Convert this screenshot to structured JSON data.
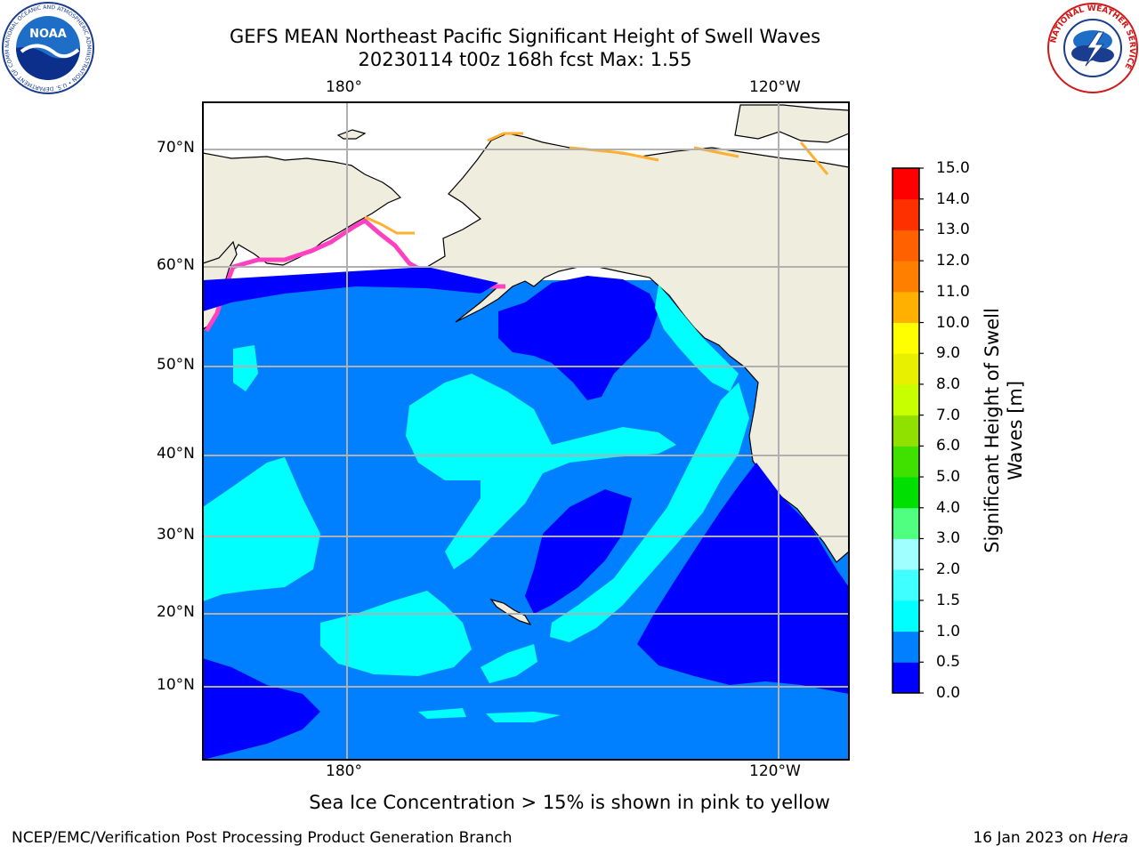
{
  "title": {
    "line1": "GEFS MEAN Northeast Pacific Significant Height of Swell Waves",
    "line2": "20230114 t00z 168h fcst   Max: 1.55"
  },
  "map": {
    "top_lon_labels": [
      "180°",
      "120°W"
    ],
    "bottom_lon_labels": [
      "180°",
      "120°W"
    ],
    "lat_labels": [
      "70°N",
      "60°N",
      "50°N",
      "40°N",
      "30°N",
      "20°N",
      "10°N"
    ],
    "colors": {
      "land": "#efedde",
      "ocean_light": "#0080ff",
      "ocean_dark": "#0000ff",
      "swell_cyan": "#00ffff",
      "grid": "#b0b0b0",
      "coast": "#000000"
    }
  },
  "colorbar": {
    "label": "Significant Height of Swell Waves [m]",
    "label_line1": "Significant Height of Swell",
    "label_line2": "Waves [m]",
    "ticks": [
      "15.0",
      "14.0",
      "13.0",
      "12.0",
      "11.0",
      "10.0",
      "9.0",
      "8.0",
      "7.0",
      "6.0",
      "5.0",
      "4.0",
      "3.0",
      "2.0",
      "1.5",
      "1.0",
      "0.5",
      "0.0"
    ],
    "colors_bottom_to_top": [
      "#0000ff",
      "#0080ff",
      "#00ffff",
      "#40ffff",
      "#a0ffff",
      "#50ff80",
      "#00e000",
      "#40e000",
      "#90e000",
      "#c8ff00",
      "#e8f000",
      "#ffff00",
      "#ffb000",
      "#ff8000",
      "#ff6000",
      "#ff3000",
      "#ff0000"
    ]
  },
  "notes": {
    "sea_ice": "Sea Ice Concentration > 15% is shown in pink to yellow"
  },
  "footer": {
    "left": "NCEP/EMC/Verification Post Processing Product Generation Branch",
    "right_prefix": "16 Jan 2023 on ",
    "right_host": "Hera"
  },
  "logos": {
    "noaa_text": "NOAA",
    "noaa_ring": "NATIONAL OCEANIC AND ATMOSPHERIC ADMINISTRATION • U.S. DEPARTMENT OF COMMERCE •",
    "nws_ring": "NATIONAL WEATHER SERVICE"
  }
}
